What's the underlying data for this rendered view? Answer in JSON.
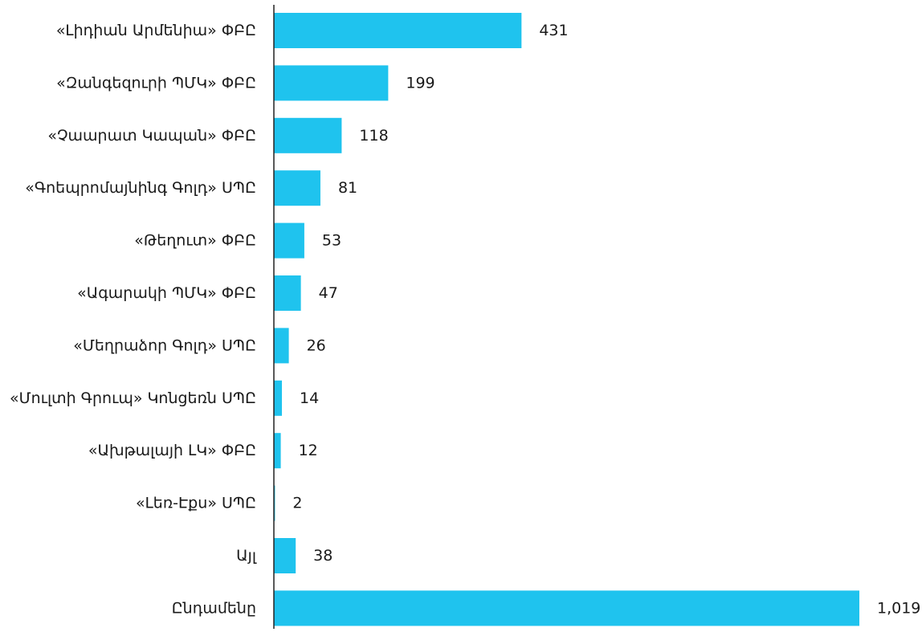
{
  "chart_data": {
    "type": "bar",
    "orientation": "horizontal",
    "categories": [
      "«Լիդիան Արմենիա» ՓԲԸ",
      "«Զանգեզուրի ՊՄԿ» ՓԲԸ",
      "«Չաարատ Կապան» ՓԲԸ",
      "«Գոեպրոմայնինգ Գոլդ» ՍՊԸ",
      "«Թեղուտ» ՓԲԸ",
      "«Ագարակի ՊՄԿ» ՓԲԸ",
      "«Մեղրաձոր Գոլդ» ՍՊԸ",
      "«Մուլտի Գրուպ» Կոնցեռն ՍՊԸ",
      "«Ախթալայի ԼԿ» ՓԲԸ",
      "«Լեռ-Էքս» ՍՊԸ",
      "Այլ",
      "Ընդամենը"
    ],
    "values": [
      431,
      199,
      118,
      81,
      53,
      47,
      26,
      14,
      12,
      2,
      38,
      1019
    ],
    "value_labels": [
      "431",
      "199",
      "118",
      "81",
      "53",
      "47",
      "26",
      "14",
      "12",
      "2",
      "38",
      "1,019"
    ],
    "title": "",
    "xlabel": "",
    "ylabel": "",
    "xlim": [
      0,
      1019
    ],
    "grid": false,
    "legend": "none",
    "colors": {
      "bar": "#1FC3EE",
      "axis": "#222222",
      "text": "#1a1a1a"
    }
  }
}
